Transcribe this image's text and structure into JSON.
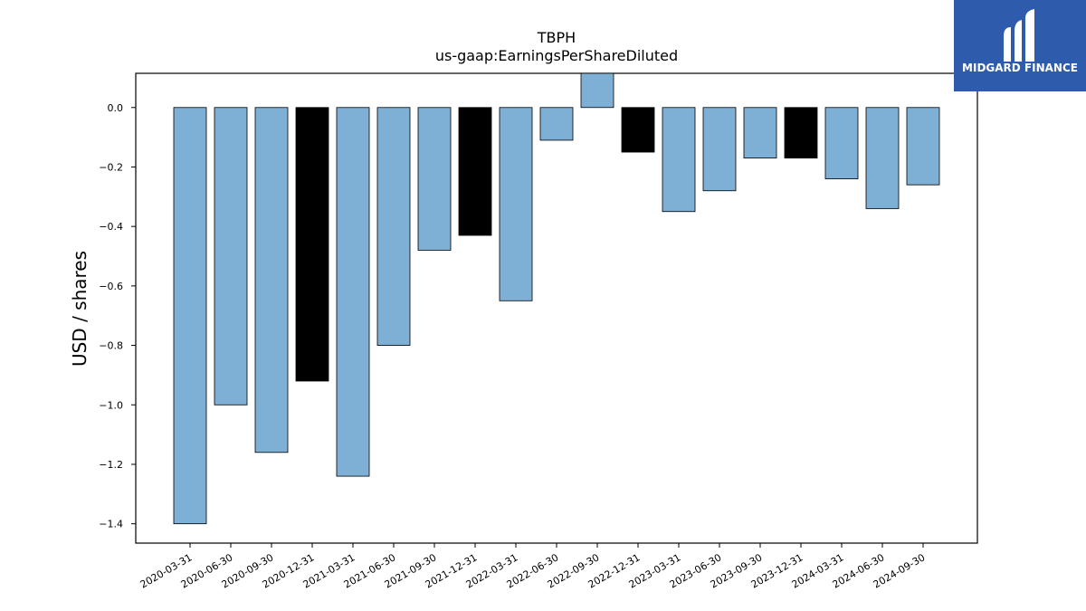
{
  "chart_data": {
    "type": "bar",
    "title": "TBPH",
    "subtitle": "us-gaap:EarningsPerShareDiluted",
    "xlabel": "",
    "ylabel": "USD / shares",
    "ylim": [
      -1.465,
      0.115
    ],
    "yticks": [
      0.0,
      -0.2,
      -0.4,
      -0.6,
      -0.8,
      -1.0,
      -1.2,
      -1.4
    ],
    "yticklabels": [
      "0.0",
      "−0.2",
      "−0.4",
      "−0.6",
      "−0.8",
      "−1.0",
      "−1.2",
      "−1.4"
    ],
    "grid": false,
    "categories": [
      "2020-03-31",
      "2020-06-30",
      "2020-09-30",
      "2020-12-31",
      "2021-03-31",
      "2021-06-30",
      "2021-09-30",
      "2021-12-31",
      "2022-03-31",
      "2022-06-30",
      "2022-09-30",
      "2022-12-31",
      "2023-03-31",
      "2023-06-30",
      "2023-09-30",
      "2023-12-31",
      "2024-03-31",
      "2024-06-30",
      "2024-09-30"
    ],
    "values": [
      -1.4,
      -1.0,
      -1.16,
      -0.92,
      -1.24,
      -0.8,
      -0.48,
      -0.43,
      -0.65,
      -0.11,
      0.12,
      -0.15,
      -0.35,
      -0.28,
      -0.17,
      -0.17,
      -0.24,
      -0.34,
      -0.26
    ],
    "bar_colors": [
      "#7eafd4",
      "#7eafd4",
      "#7eafd4",
      "#000000",
      "#7eafd4",
      "#7eafd4",
      "#7eafd4",
      "#000000",
      "#7eafd4",
      "#7eafd4",
      "#7eafd4",
      "#000000",
      "#7eafd4",
      "#7eafd4",
      "#7eafd4",
      "#000000",
      "#7eafd4",
      "#7eafd4",
      "#7eafd4"
    ]
  },
  "colors": {
    "quarter_bar": "#7eafd4",
    "year_end_bar": "#000000",
    "logo_background": "#2e5bac"
  },
  "logo": {
    "text": "MIDGARD FINANCE"
  }
}
